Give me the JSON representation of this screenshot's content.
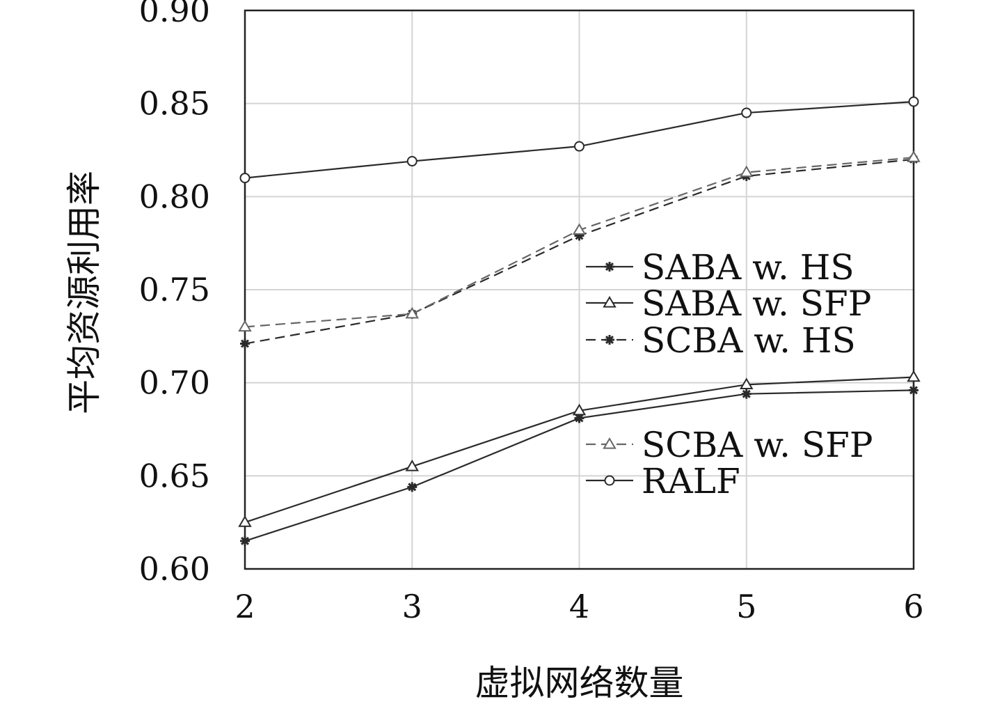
{
  "chart_data": {
    "type": "line",
    "xlabel": "虚拟网络数量",
    "ylabel": "平均资源利用率",
    "x": [
      2,
      3,
      4,
      5,
      6
    ],
    "xlim": [
      2,
      6
    ],
    "ylim": [
      0.6,
      0.9
    ],
    "xticks": [
      "2",
      "3",
      "4",
      "5",
      "6"
    ],
    "yticks": [
      "0.60",
      "0.65",
      "0.70",
      "0.75",
      "0.80",
      "0.85",
      "0.90"
    ],
    "grid": true,
    "legend_position": "right",
    "series": [
      {
        "name": "SABA w. HS",
        "values": [
          0.615,
          0.644,
          0.681,
          0.694,
          0.696
        ],
        "marker": "star",
        "dash": "solid",
        "color": "#2a2a2a"
      },
      {
        "name": "SABA w. SFP",
        "values": [
          0.625,
          0.655,
          0.685,
          0.699,
          0.703
        ],
        "marker": "triangle",
        "dash": "solid",
        "color": "#2a2a2a"
      },
      {
        "name": "SCBA w. HS",
        "values": [
          0.721,
          0.737,
          0.779,
          0.811,
          0.82
        ],
        "marker": "star",
        "dash": "dashed",
        "color": "#2a2a2a"
      },
      {
        "name": "SCBA w. SFP",
        "values": [
          0.73,
          0.737,
          0.782,
          0.813,
          0.821
        ],
        "marker": "triangle",
        "dash": "dashed",
        "color": "#666666"
      },
      {
        "name": "RALF",
        "values": [
          0.81,
          0.819,
          0.827,
          0.845,
          0.851
        ],
        "marker": "circle",
        "dash": "solid",
        "color": "#2a2a2a"
      }
    ]
  }
}
